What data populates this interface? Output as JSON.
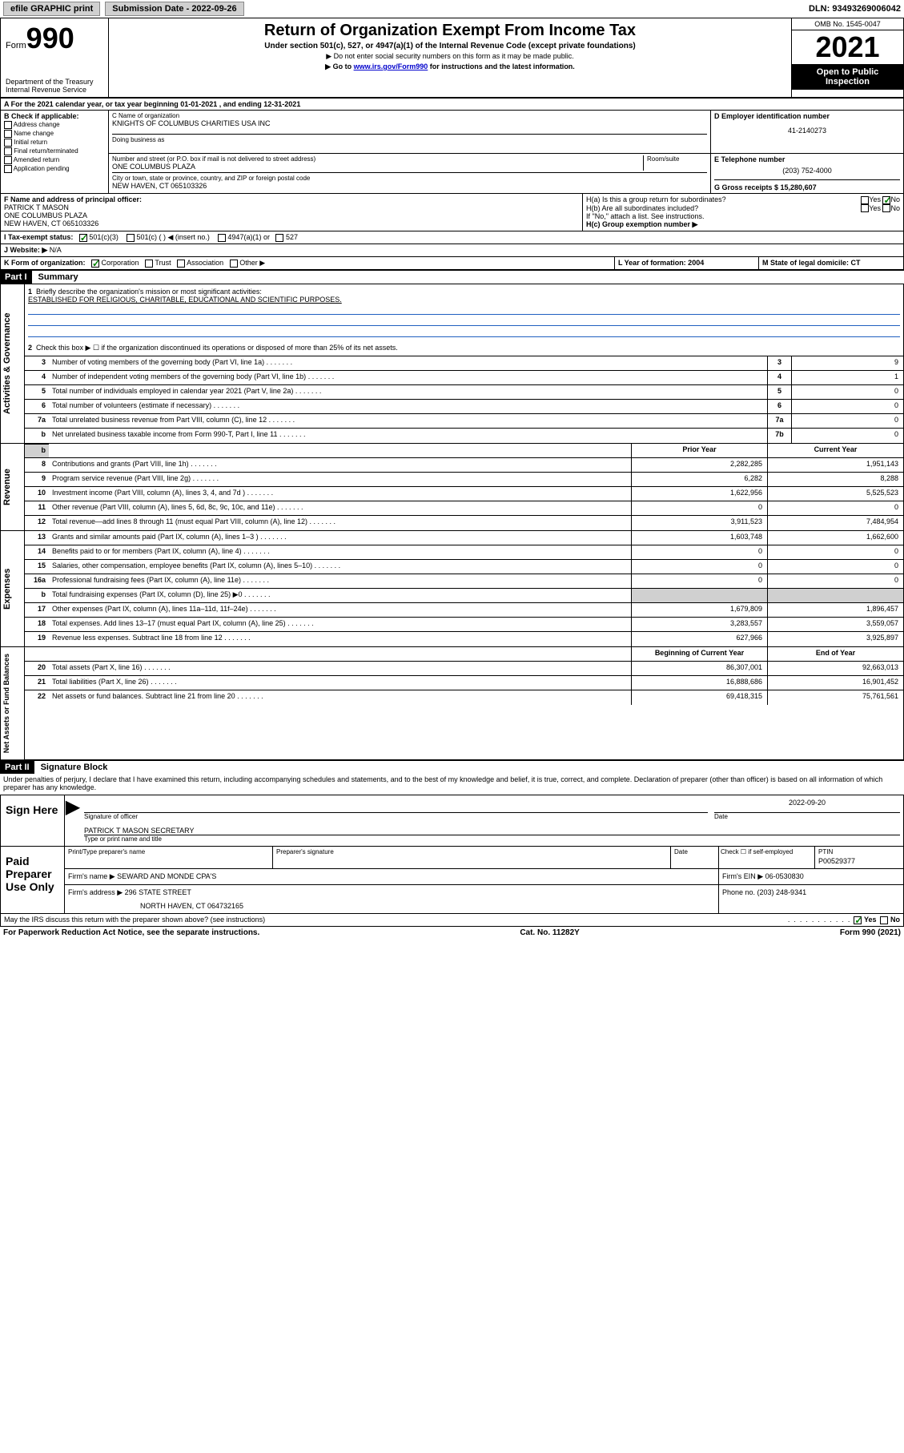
{
  "topbar": {
    "efile_prefix": "efile",
    "efile_rest": " GRAPHIC print",
    "subdate_lbl": "Submission Date - 2022-09-26",
    "dln_lbl": "DLN: 93493269006042"
  },
  "header": {
    "form_word": "Form",
    "form_num": "990",
    "title": "Return of Organization Exempt From Income Tax",
    "sub1": "Under section 501(c), 527, or 4947(a)(1) of the Internal Revenue Code (except private foundations)",
    "sub2": "▶ Do not enter social security numbers on this form as it may be made public.",
    "sub3_pre": "▶ Go to ",
    "sub3_link": "www.irs.gov/Form990",
    "sub3_post": " for instructions and the latest information.",
    "omb": "OMB No. 1545-0047",
    "year": "2021",
    "openpub1": "Open to Public",
    "openpub2": "Inspection",
    "dept1": "Department of the Treasury",
    "dept2": "Internal Revenue Service"
  },
  "sectionA": {
    "a_line": "A For the 2021 calendar year, or tax year beginning 01-01-2021   , and ending 12-31-2021",
    "b_lbl": "B Check if applicable:",
    "b_items": [
      "Address change",
      "Name change",
      "Initial return",
      "Final return/terminated",
      "Amended return",
      "Application pending"
    ],
    "c_lbl": "C Name of organization",
    "c_val": "KNIGHTS OF COLUMBUS CHARITIES USA INC",
    "dba_lbl": "Doing business as",
    "addr_lbl": "Number and street (or P.O. box if mail is not delivered to street address)",
    "addr_val": "ONE COLUMBUS PLAZA",
    "room_lbl": "Room/suite",
    "city_lbl": "City or town, state or province, country, and ZIP or foreign postal code",
    "city_val": "NEW HAVEN, CT  065103326",
    "d_lbl": "D Employer identification number",
    "d_val": "41-2140273",
    "e_lbl": "E Telephone number",
    "e_val": "(203) 752-4000",
    "g_lbl": "G Gross receipts $ 15,280,607",
    "f_lbl": "F Name and address of principal officer:",
    "f_name": "PATRICK T MASON",
    "f_addr1": "ONE COLUMBUS PLAZA",
    "f_addr2": "NEW HAVEN, CT  065103326",
    "ha_lbl": "H(a)  Is this a group return for subordinates?",
    "hb_lbl": "H(b)  Are all subordinates included?",
    "h_attach": "If \"No,\" attach a list. See instructions.",
    "hc_lbl": "H(c)  Group exemption number ▶",
    "yes": "Yes",
    "no": "No",
    "i_lbl": "I   Tax-exempt status:",
    "i_501c3": "501(c)(3)",
    "i_501c": "501(c) (  ) ◀ (insert no.)",
    "i_4947": "4947(a)(1) or",
    "i_527": "527",
    "j_lbl": "J   Website: ▶",
    "j_val": "N/A",
    "k_lbl": "K Form of organization:",
    "k_corp": "Corporation",
    "k_trust": "Trust",
    "k_assoc": "Association",
    "k_other": "Other ▶",
    "l_lbl": "L Year of formation: 2004",
    "m_lbl": "M State of legal domicile: CT"
  },
  "part1": {
    "hdr": "Part I",
    "title": "Summary",
    "q1": "Briefly describe the organization's mission or most significant activities:",
    "q1_ans": "ESTABLISHED FOR RELIGIOUS, CHARITABLE, EDUCATIONAL AND SCIENTIFIC PURPOSES.",
    "q2": "Check this box ▶ ☐  if the organization discontinued its operations or disposed of more than 25% of its net assets.",
    "side1": "Activities & Governance",
    "side2": "Revenue",
    "side3": "Expenses",
    "side4": "Net Assets or Fund Balances",
    "prior_hdr": "Prior Year",
    "curr_hdr": "Current Year",
    "begin_hdr": "Beginning of Current Year",
    "end_hdr": "End of Year",
    "rows_gov": [
      {
        "n": "3",
        "d": "Number of voting members of the governing body (Part VI, line 1a)",
        "box": "3",
        "v": "9"
      },
      {
        "n": "4",
        "d": "Number of independent voting members of the governing body (Part VI, line 1b)",
        "box": "4",
        "v": "1"
      },
      {
        "n": "5",
        "d": "Total number of individuals employed in calendar year 2021 (Part V, line 2a)",
        "box": "5",
        "v": "0"
      },
      {
        "n": "6",
        "d": "Total number of volunteers (estimate if necessary)",
        "box": "6",
        "v": "0"
      },
      {
        "n": "7a",
        "d": "Total unrelated business revenue from Part VIII, column (C), line 12",
        "box": "7a",
        "v": "0"
      },
      {
        "n": "b",
        "d": "Net unrelated business taxable income from Form 990-T, Part I, line 11",
        "box": "7b",
        "v": "0"
      }
    ],
    "rows_rev": [
      {
        "n": "8",
        "d": "Contributions and grants (Part VIII, line 1h)",
        "p": "2,282,285",
        "c": "1,951,143"
      },
      {
        "n": "9",
        "d": "Program service revenue (Part VIII, line 2g)",
        "p": "6,282",
        "c": "8,288"
      },
      {
        "n": "10",
        "d": "Investment income (Part VIII, column (A), lines 3, 4, and 7d )",
        "p": "1,622,956",
        "c": "5,525,523"
      },
      {
        "n": "11",
        "d": "Other revenue (Part VIII, column (A), lines 5, 6d, 8c, 9c, 10c, and 11e)",
        "p": "0",
        "c": "0"
      },
      {
        "n": "12",
        "d": "Total revenue—add lines 8 through 11 (must equal Part VIII, column (A), line 12)",
        "p": "3,911,523",
        "c": "7,484,954"
      }
    ],
    "rows_exp": [
      {
        "n": "13",
        "d": "Grants and similar amounts paid (Part IX, column (A), lines 1–3 )",
        "p": "1,603,748",
        "c": "1,662,600"
      },
      {
        "n": "14",
        "d": "Benefits paid to or for members (Part IX, column (A), line 4)",
        "p": "0",
        "c": "0"
      },
      {
        "n": "15",
        "d": "Salaries, other compensation, employee benefits (Part IX, column (A), lines 5–10)",
        "p": "0",
        "c": "0"
      },
      {
        "n": "16a",
        "d": "Professional fundraising fees (Part IX, column (A), line 11e)",
        "p": "0",
        "c": "0"
      },
      {
        "n": "b",
        "d": "Total fundraising expenses (Part IX, column (D), line 25) ▶0",
        "p": "",
        "c": "",
        "grey": true
      },
      {
        "n": "17",
        "d": "Other expenses (Part IX, column (A), lines 11a–11d, 11f–24e)",
        "p": "1,679,809",
        "c": "1,896,457"
      },
      {
        "n": "18",
        "d": "Total expenses. Add lines 13–17 (must equal Part IX, column (A), line 25)",
        "p": "3,283,557",
        "c": "3,559,057"
      },
      {
        "n": "19",
        "d": "Revenue less expenses. Subtract line 18 from line 12",
        "p": "627,966",
        "c": "3,925,897"
      }
    ],
    "rows_net": [
      {
        "n": "20",
        "d": "Total assets (Part X, line 16)",
        "p": "86,307,001",
        "c": "92,663,013"
      },
      {
        "n": "21",
        "d": "Total liabilities (Part X, line 26)",
        "p": "16,888,686",
        "c": "16,901,452"
      },
      {
        "n": "22",
        "d": "Net assets or fund balances. Subtract line 21 from line 20",
        "p": "69,418,315",
        "c": "75,761,561"
      }
    ]
  },
  "part2": {
    "hdr": "Part II",
    "title": "Signature Block",
    "decl": "Under penalties of perjury, I declare that I have examined this return, including accompanying schedules and statements, and to the best of my knowledge and belief, it is true, correct, and complete. Declaration of preparer (other than officer) is based on all information of which preparer has any knowledge.",
    "sign_here": "Sign Here",
    "sig_officer": "Signature of officer",
    "sig_date": "2022-09-20",
    "date_lbl": "Date",
    "officer_name": "PATRICK T MASON  SECRETARY",
    "type_name": "Type or print name and title",
    "paid": "Paid Preparer Use Only",
    "prep_name_lbl": "Print/Type preparer's name",
    "prep_sig_lbl": "Preparer's signature",
    "check_self": "Check ☐ if self-employed",
    "ptin_lbl": "PTIN",
    "ptin": "P00529377",
    "firm_name_lbl": "Firm's name    ▶",
    "firm_name": "SEWARD AND MONDE CPA'S",
    "firm_ein_lbl": "Firm's EIN ▶",
    "firm_ein": "06-0530830",
    "firm_addr_lbl": "Firm's address ▶",
    "firm_addr1": "296 STATE STREET",
    "firm_addr2": "NORTH HAVEN, CT  064732165",
    "phone_lbl": "Phone no. (203) 248-9341",
    "may_irs": "May the IRS discuss this return with the preparer shown above? (see instructions)"
  },
  "footer": {
    "paperwork": "For Paperwork Reduction Act Notice, see the separate instructions.",
    "cat": "Cat. No. 11282Y",
    "form": "Form 990 (2021)"
  }
}
